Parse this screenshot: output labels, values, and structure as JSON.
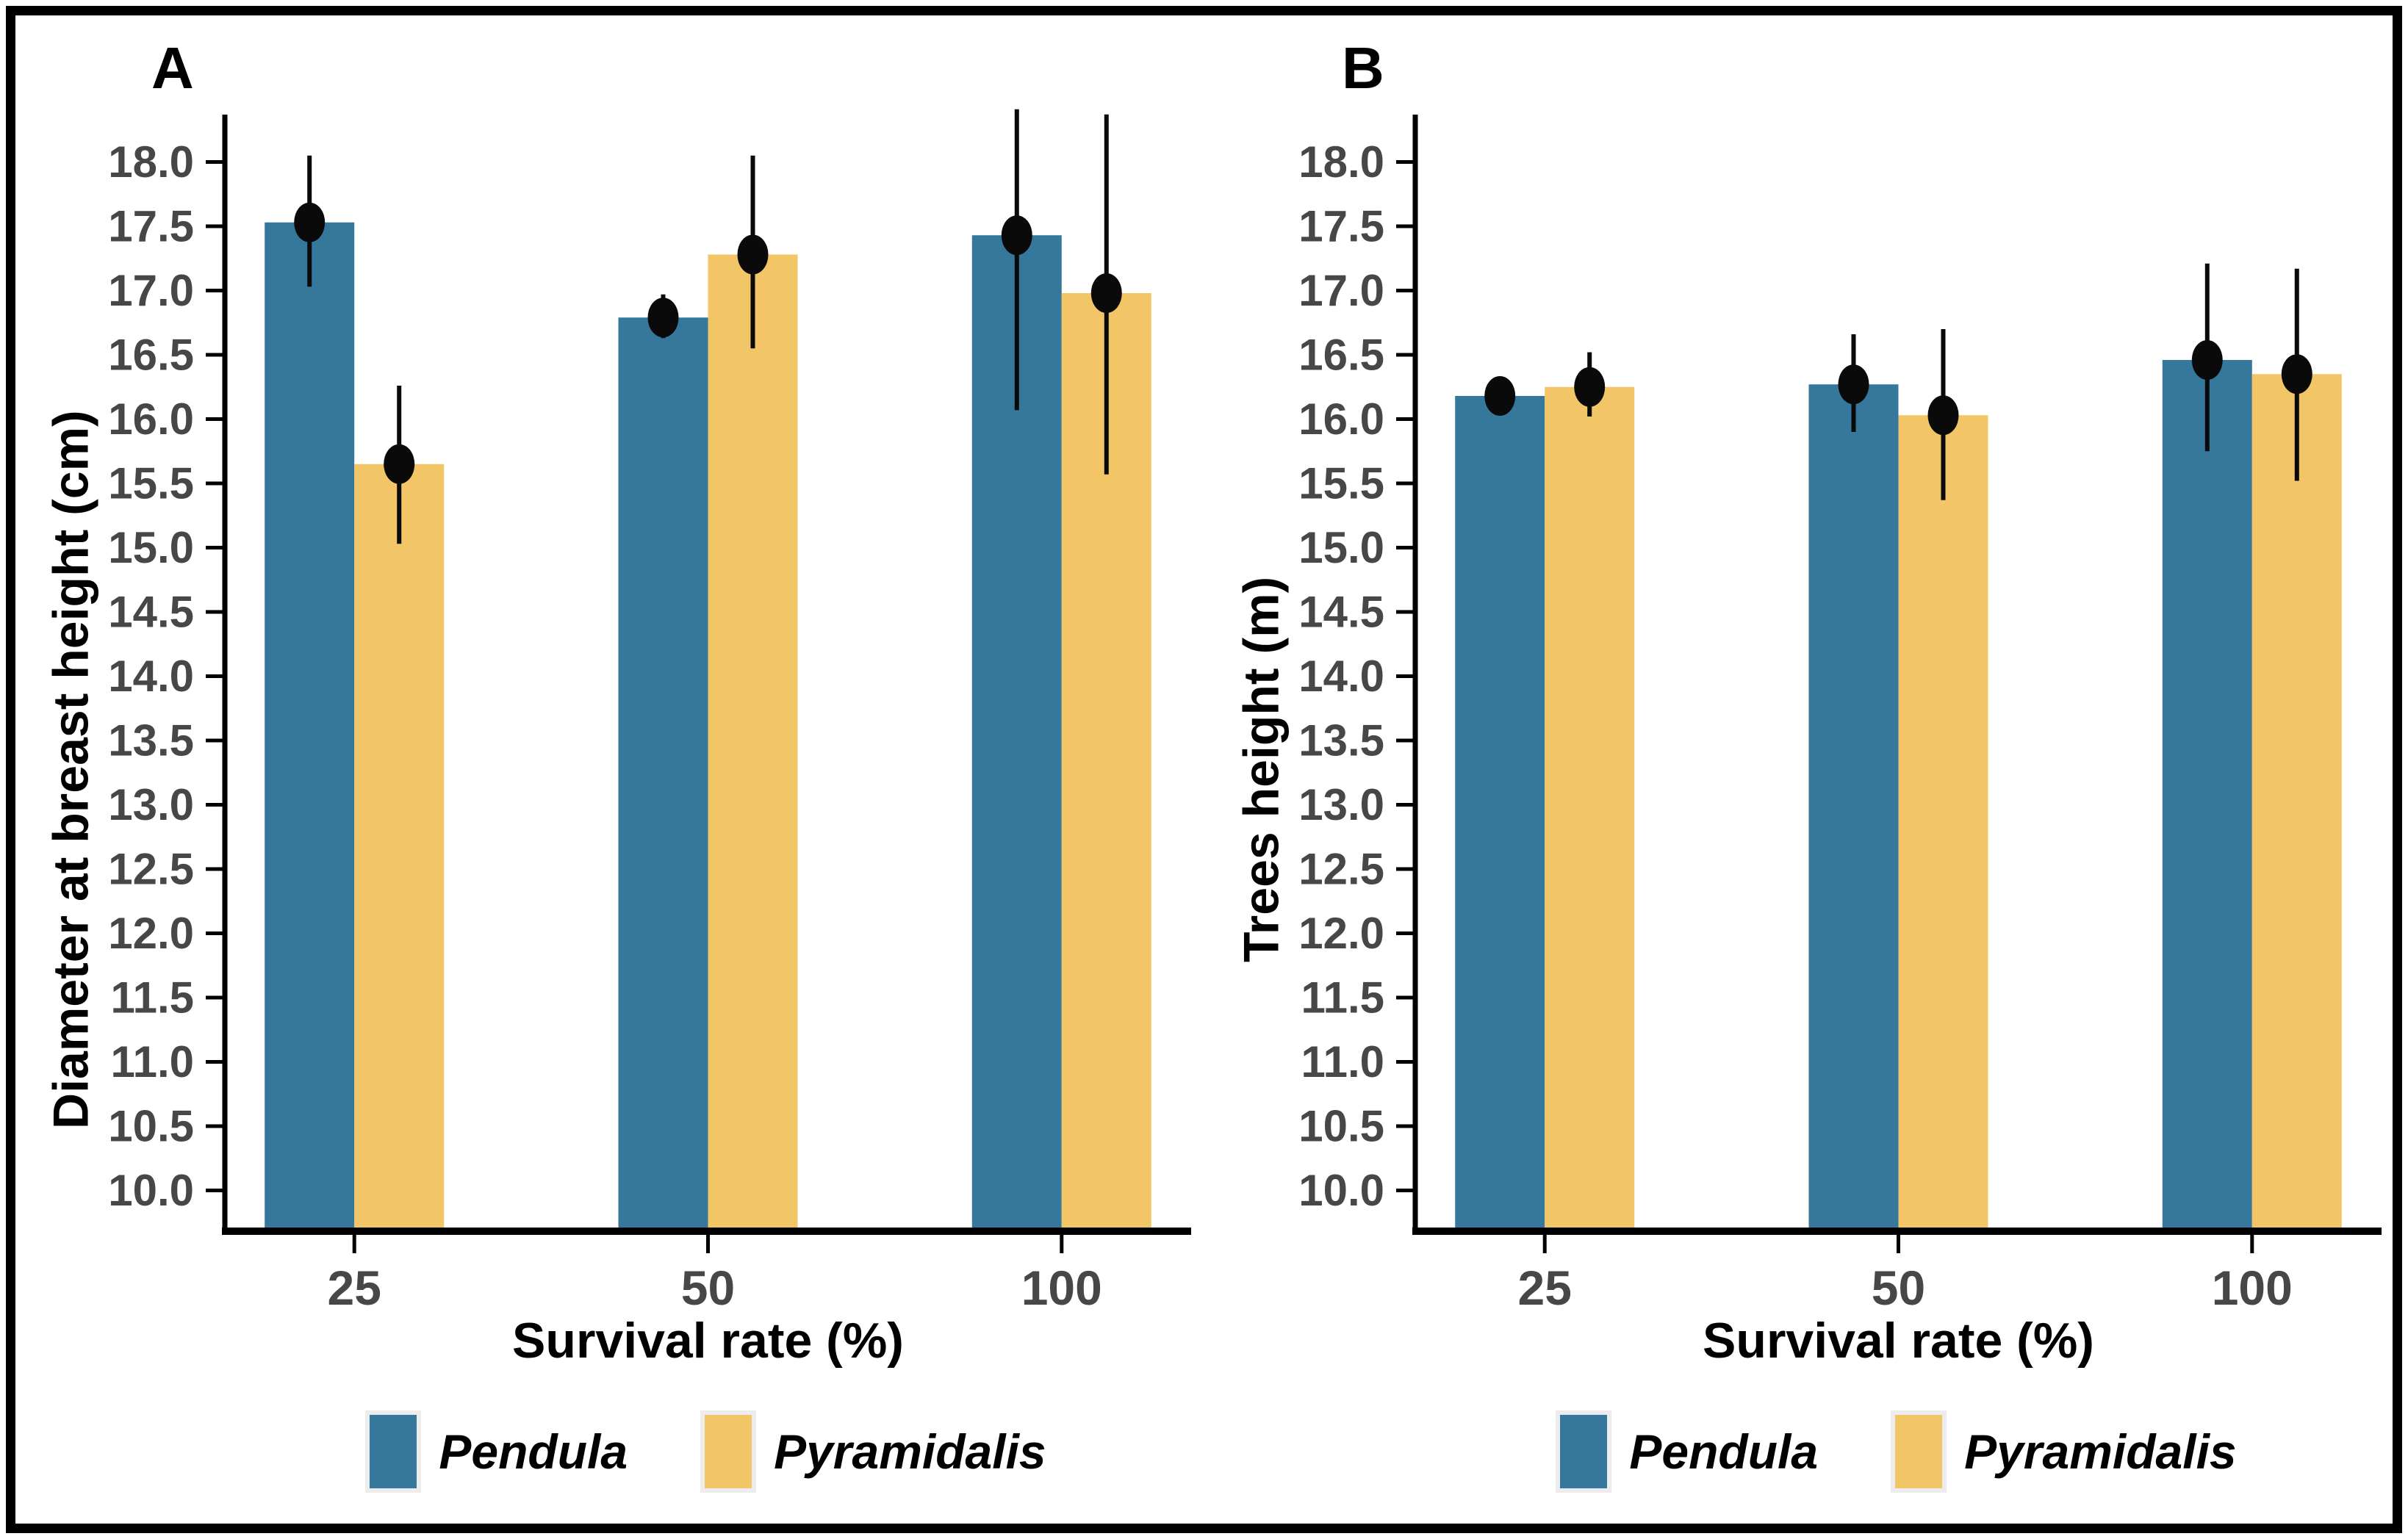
{
  "figure": {
    "background": "#ffffff",
    "border_color": "#000000"
  },
  "chart_data": [
    {
      "type": "bar",
      "panel": "A",
      "xlabel": "Survival rate (%)",
      "ylabel": "Diameter at breast height (cm)",
      "categories": [
        "25",
        "50",
        "100"
      ],
      "series": [
        {
          "name": "Pendula",
          "color": "#35789B",
          "values": [
            17.53,
            16.79,
            17.43
          ],
          "ci_low": [
            17.03,
            16.63,
            16.07
          ],
          "ci_high": [
            18.05,
            16.97,
            18.41
          ]
        },
        {
          "name": "Pyramidalis",
          "color": "#F2C566",
          "values": [
            15.65,
            17.28,
            16.98
          ],
          "ci_low": [
            15.03,
            16.55,
            15.57
          ],
          "ci_high": [
            16.26,
            18.05,
            18.37
          ]
        }
      ],
      "yticks": {
        "min": 10.0,
        "max": 18.0,
        "step": 0.5
      },
      "ylim": [
        9.68,
        18.55
      ],
      "grid": false,
      "legend_position": "bottom",
      "axis_color": "#000000",
      "tick_label_color": "#474747",
      "error_color": "#0a0a0a"
    },
    {
      "type": "bar",
      "panel": "B",
      "xlabel": "Survival rate (%)",
      "ylabel": "Trees height (m)",
      "categories": [
        "25",
        "50",
        "100"
      ],
      "series": [
        {
          "name": "Pendula",
          "color": "#35789B",
          "values": [
            16.18,
            16.27,
            16.46
          ],
          "ci_low": [
            16.03,
            15.9,
            15.75
          ],
          "ci_high": [
            16.33,
            16.66,
            17.21
          ]
        },
        {
          "name": "Pyramidalis",
          "color": "#F2C566",
          "values": [
            16.25,
            16.03,
            16.35
          ],
          "ci_low": [
            16.02,
            15.37,
            15.52
          ],
          "ci_high": [
            16.52,
            16.7,
            17.17
          ]
        }
      ],
      "yticks": {
        "min": 10.0,
        "max": 18.0,
        "step": 0.5
      },
      "ylim": [
        9.68,
        18.55
      ],
      "grid": false,
      "legend_position": "bottom",
      "axis_color": "#000000",
      "tick_label_color": "#474747",
      "error_color": "#0a0a0a"
    }
  ]
}
